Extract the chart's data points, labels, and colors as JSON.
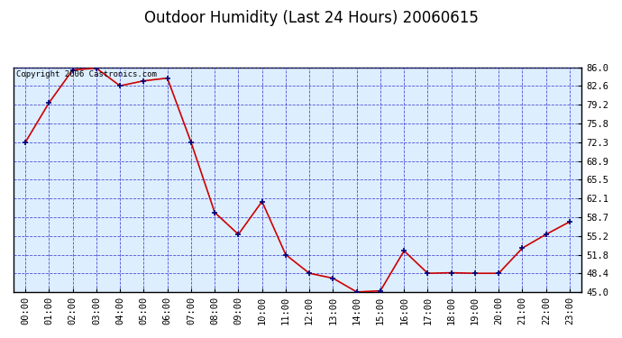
{
  "title": "Outdoor Humidity (Last 24 Hours) 20060615",
  "copyright_text": "Copyright 2006 Castronics.com",
  "x_labels": [
    "00:00",
    "01:00",
    "02:00",
    "03:00",
    "04:00",
    "05:00",
    "06:00",
    "07:00",
    "08:00",
    "09:00",
    "10:00",
    "11:00",
    "12:00",
    "13:00",
    "14:00",
    "15:00",
    "16:00",
    "17:00",
    "18:00",
    "19:00",
    "20:00",
    "21:00",
    "22:00",
    "23:00"
  ],
  "y_values": [
    72.3,
    79.5,
    85.5,
    85.8,
    82.6,
    83.5,
    84.0,
    72.3,
    59.5,
    55.5,
    61.5,
    51.8,
    48.4,
    47.5,
    45.0,
    45.2,
    52.5,
    48.4,
    48.5,
    48.4,
    48.4,
    53.0,
    55.5,
    57.8
  ],
  "line_color": "#cc0000",
  "marker_color": "#000080",
  "background_color": "#ffffff",
  "plot_bg_color": "#ddeeff",
  "grid_color": "#3333cc",
  "border_color": "#000000",
  "y_ticks": [
    45.0,
    48.4,
    51.8,
    55.2,
    58.7,
    62.1,
    65.5,
    68.9,
    72.3,
    75.8,
    79.2,
    82.6,
    86.0
  ],
  "ylim": [
    45.0,
    86.0
  ],
  "title_fontsize": 12,
  "tick_fontsize": 7.5,
  "copyright_fontsize": 6.5
}
